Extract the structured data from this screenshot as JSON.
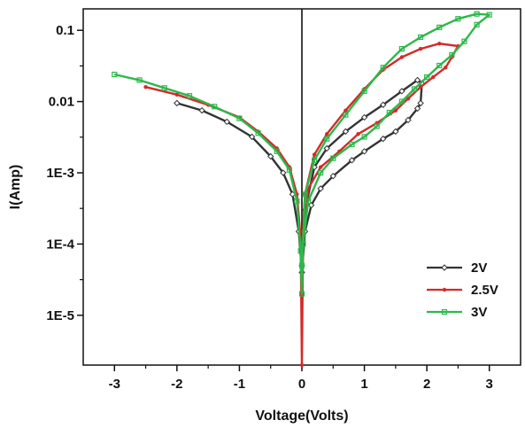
{
  "chart_data": {
    "type": "line",
    "xlabel": "Voltage(Volts)",
    "ylabel": "I(Amp)",
    "xlim": [
      -3.5,
      3.5
    ],
    "ylim": [
      2e-06,
      0.2
    ],
    "yscale": "log",
    "x_ticks": [
      -3,
      -2,
      -1,
      0,
      1,
      2,
      3
    ],
    "x_tick_labels": [
      "-3",
      "-2",
      "-1",
      "0",
      "1",
      "2",
      "3"
    ],
    "y_ticks": [
      1e-05,
      0.0001,
      0.001,
      0.01,
      0.1
    ],
    "y_tick_labels": [
      "1E-5",
      "1E-4",
      "1E-3",
      "0.01",
      "0.1"
    ],
    "grid": false,
    "legend_position": "bottom-right",
    "series": [
      {
        "name": "2V",
        "color": "#333333",
        "marker": "diamond-open",
        "points": [
          [
            -2.0,
            0.0095
          ],
          [
            -1.6,
            0.0075
          ],
          [
            -1.2,
            0.0052
          ],
          [
            -0.8,
            0.0032
          ],
          [
            -0.5,
            0.0017
          ],
          [
            -0.3,
            0.001
          ],
          [
            -0.15,
            0.0005
          ],
          [
            -0.05,
            0.00015
          ],
          [
            0.0,
            4e-05
          ],
          [
            0.05,
            0.00015
          ],
          [
            0.15,
            0.00035
          ],
          [
            0.3,
            0.0006
          ],
          [
            0.5,
            0.0009
          ],
          [
            0.8,
            0.0015
          ],
          [
            1.0,
            0.002
          ],
          [
            1.3,
            0.003
          ],
          [
            1.5,
            0.0038
          ],
          [
            1.7,
            0.0055
          ],
          [
            1.85,
            0.008
          ],
          [
            1.9,
            0.0095
          ],
          [
            1.92,
            0.018
          ],
          [
            1.85,
            0.02
          ],
          [
            1.6,
            0.014
          ],
          [
            1.3,
            0.009
          ],
          [
            1.0,
            0.006
          ],
          [
            0.7,
            0.0038
          ],
          [
            0.4,
            0.0022
          ],
          [
            0.2,
            0.0012
          ],
          [
            0.05,
            0.0003
          ],
          [
            0.0,
            5e-05
          ]
        ]
      },
      {
        "name": "2.5V",
        "color": "#d42a2a",
        "marker": "dot",
        "points": [
          [
            -2.5,
            0.016
          ],
          [
            -2.0,
            0.0125
          ],
          [
            -1.5,
            0.009
          ],
          [
            -1.0,
            0.006
          ],
          [
            -0.7,
            0.0038
          ],
          [
            -0.4,
            0.0022
          ],
          [
            -0.2,
            0.0012
          ],
          [
            -0.08,
            0.0005
          ],
          [
            -0.02,
            0.00012
          ],
          [
            0.0,
            2e-06
          ],
          [
            0.02,
            0.00015
          ],
          [
            0.1,
            0.0006
          ],
          [
            0.3,
            0.0012
          ],
          [
            0.6,
            0.002
          ],
          [
            0.9,
            0.0035
          ],
          [
            1.2,
            0.005
          ],
          [
            1.5,
            0.0075
          ],
          [
            1.7,
            0.011
          ],
          [
            1.9,
            0.016
          ],
          [
            2.1,
            0.022
          ],
          [
            2.3,
            0.03
          ],
          [
            2.4,
            0.042
          ],
          [
            2.5,
            0.06
          ],
          [
            2.2,
            0.065
          ],
          [
            1.9,
            0.055
          ],
          [
            1.6,
            0.042
          ],
          [
            1.3,
            0.028
          ],
          [
            1.0,
            0.015
          ],
          [
            0.7,
            0.0075
          ],
          [
            0.4,
            0.0035
          ],
          [
            0.2,
            0.0018
          ],
          [
            0.05,
            0.0005
          ],
          [
            0.0,
            8e-05
          ]
        ]
      },
      {
        "name": "3V",
        "color": "#2db84a",
        "marker": "square-open",
        "points": [
          [
            -3.0,
            0.024
          ],
          [
            -2.6,
            0.02
          ],
          [
            -2.2,
            0.0155
          ],
          [
            -1.8,
            0.012
          ],
          [
            -1.4,
            0.0085
          ],
          [
            -1.0,
            0.0058
          ],
          [
            -0.7,
            0.0036
          ],
          [
            -0.4,
            0.002
          ],
          [
            -0.2,
            0.0011
          ],
          [
            -0.08,
            0.0004
          ],
          [
            -0.02,
            8e-05
          ],
          [
            0.0,
            2e-05
          ],
          [
            0.02,
            0.0001
          ],
          [
            0.1,
            0.0004
          ],
          [
            0.3,
            0.001
          ],
          [
            0.5,
            0.0016
          ],
          [
            0.8,
            0.0025
          ],
          [
            1.0,
            0.0032
          ],
          [
            1.2,
            0.0045
          ],
          [
            1.4,
            0.007
          ],
          [
            1.6,
            0.01
          ],
          [
            1.8,
            0.015
          ],
          [
            2.0,
            0.022
          ],
          [
            2.2,
            0.032
          ],
          [
            2.4,
            0.045
          ],
          [
            2.6,
            0.07
          ],
          [
            2.8,
            0.12
          ],
          [
            3.0,
            0.165
          ],
          [
            2.8,
            0.17
          ],
          [
            2.5,
            0.145
          ],
          [
            2.2,
            0.11
          ],
          [
            1.9,
            0.08
          ],
          [
            1.6,
            0.055
          ],
          [
            1.3,
            0.03
          ],
          [
            1.0,
            0.014
          ],
          [
            0.7,
            0.0065
          ],
          [
            0.4,
            0.003
          ],
          [
            0.2,
            0.0015
          ],
          [
            0.05,
            0.0005
          ],
          [
            0.0,
            5e-05
          ]
        ]
      }
    ]
  }
}
